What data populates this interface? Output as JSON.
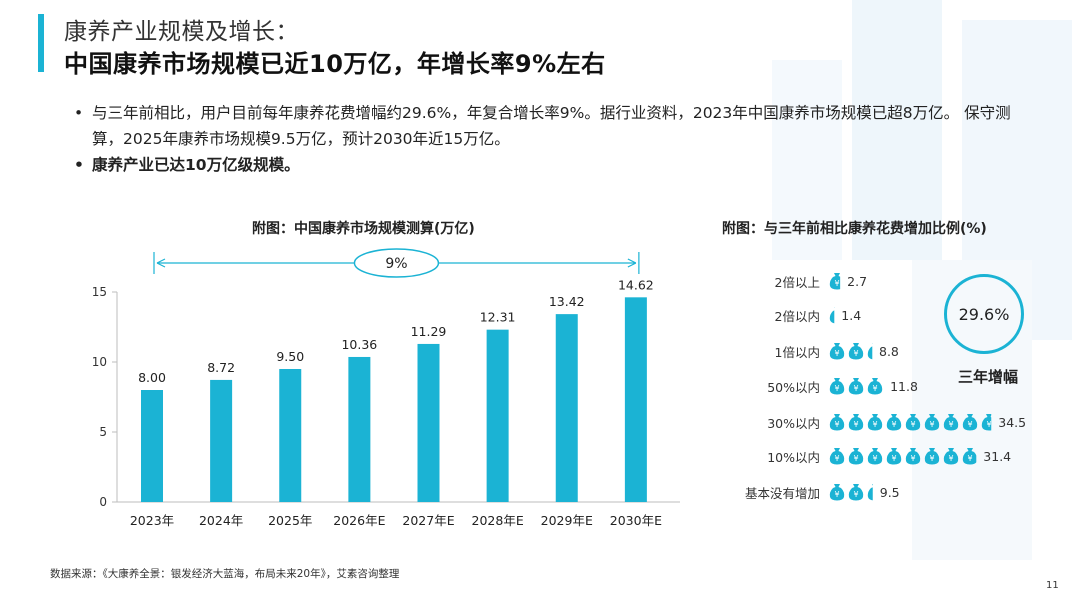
{
  "header": {
    "title_line1": "康养产业规模及增长：",
    "title_line2": "中国康养市场规模已近10万亿，年增长率9%左右"
  },
  "bullets": [
    "与三年前相比，用户目前每年康养花费增幅约29.6%，年复合增长率9%。据行业资料，2023年中国康养市场规模已超8万亿。 保守测算，2025年康养市场规模9.5万亿，预计2030年近15万亿。",
    "康养产业已达10万亿级规模。"
  ],
  "colors": {
    "accent": "#1bb3d4",
    "axis": "#bdbdbd",
    "text": "#222222"
  },
  "chart_data": [
    {
      "type": "bar",
      "title": "附图：中国康养市场规模测算(万亿)",
      "categories": [
        "2023年",
        "2024年",
        "2025年",
        "2026年E",
        "2027年E",
        "2028年E",
        "2029年E",
        "2030年E"
      ],
      "values": [
        8.0,
        8.72,
        9.5,
        10.36,
        11.29,
        12.31,
        13.42,
        14.62
      ],
      "value_labels": [
        "8.00",
        "8.72",
        "9.50",
        "10.36",
        "11.29",
        "12.31",
        "13.42",
        "14.62"
      ],
      "y_ticks": [
        0,
        5,
        10,
        15
      ],
      "ylim": [
        0,
        15
      ],
      "annotation": "9%",
      "xlabel": "",
      "ylabel": ""
    },
    {
      "type": "pictograph",
      "title": "附图：与三年前相比康养花费增加比例(%)",
      "rows": [
        {
          "label": "2倍以上",
          "value": 2.7
        },
        {
          "label": "2倍以内",
          "value": 1.4
        },
        {
          "label": "1倍以内",
          "value": 8.8
        },
        {
          "label": "50%以内",
          "value": 11.8
        },
        {
          "label": "30%以内",
          "value": 34.5
        },
        {
          "label": "10%以内",
          "value": 31.4
        },
        {
          "label": "基本没有增加",
          "value": 9.5
        }
      ],
      "value_labels": [
        "2.7",
        "1.4",
        "8.8",
        "11.8",
        "34.5",
        "31.4",
        "9.5"
      ],
      "units_per_icon": 4,
      "highlight": {
        "value": "29.6%",
        "label": "三年增幅"
      }
    }
  ],
  "footer": {
    "source": "数据来源：《大康养全景：银发经济大蓝海，布局未来20年》，艾素咨询整理",
    "page": "11"
  }
}
